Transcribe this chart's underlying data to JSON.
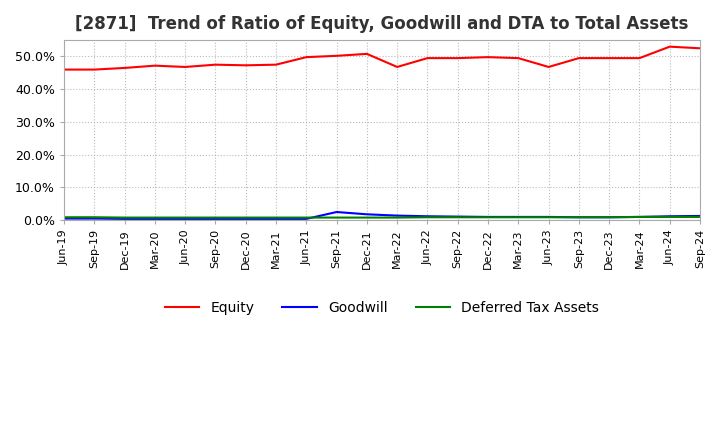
{
  "title": "[2871]  Trend of Ratio of Equity, Goodwill and DTA to Total Assets",
  "x_labels": [
    "Jun-19",
    "Sep-19",
    "Dec-19",
    "Mar-20",
    "Jun-20",
    "Sep-20",
    "Dec-20",
    "Mar-21",
    "Jun-21",
    "Sep-21",
    "Dec-21",
    "Mar-22",
    "Jun-22",
    "Sep-22",
    "Dec-22",
    "Mar-23",
    "Jun-23",
    "Sep-23",
    "Dec-23",
    "Mar-24",
    "Jun-24",
    "Sep-24"
  ],
  "equity": [
    46.0,
    46.0,
    46.5,
    47.2,
    46.8,
    47.5,
    47.3,
    47.5,
    49.8,
    50.2,
    50.8,
    46.8,
    49.5,
    49.5,
    49.8,
    49.5,
    46.8,
    49.5,
    49.5,
    49.5,
    53.0,
    52.5
  ],
  "goodwill": [
    0.5,
    0.5,
    0.4,
    0.4,
    0.4,
    0.4,
    0.4,
    0.4,
    0.4,
    2.5,
    1.8,
    1.4,
    1.2,
    1.1,
    1.0,
    1.0,
    1.0,
    0.9,
    0.9,
    1.0,
    1.2,
    1.3
  ],
  "dta": [
    0.9,
    0.9,
    0.8,
    0.8,
    0.8,
    0.8,
    0.8,
    0.8,
    0.8,
    0.8,
    0.8,
    0.8,
    0.9,
    0.9,
    0.9,
    0.9,
    0.9,
    0.9,
    0.9,
    1.0,
    1.0,
    1.0
  ],
  "equity_color": "#ff0000",
  "goodwill_color": "#0000ff",
  "dta_color": "#008000",
  "ylim": [
    0,
    55
  ],
  "yticks": [
    0.0,
    10.0,
    20.0,
    30.0,
    40.0,
    50.0
  ],
  "background_color": "#ffffff",
  "grid_color": "#aaaaaa",
  "title_fontsize": 12
}
